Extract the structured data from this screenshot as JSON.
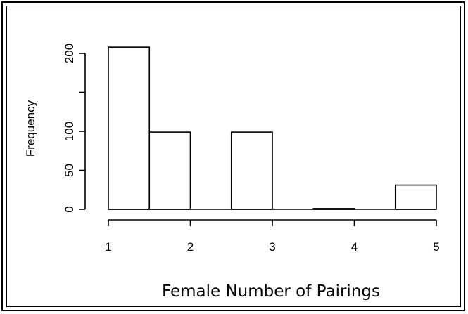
{
  "chart_data": {
    "type": "bar",
    "subtype": "histogram",
    "bins": [
      {
        "x0": 1.0,
        "x1": 1.5,
        "value": 208
      },
      {
        "x0": 1.5,
        "x1": 2.0,
        "value": 99
      },
      {
        "x0": 2.0,
        "x1": 2.5,
        "value": 0
      },
      {
        "x0": 2.5,
        "x1": 3.0,
        "value": 99
      },
      {
        "x0": 3.0,
        "x1": 3.5,
        "value": 0
      },
      {
        "x0": 3.5,
        "x1": 4.0,
        "value": 1
      },
      {
        "x0": 4.0,
        "x1": 4.5,
        "value": 0
      },
      {
        "x0": 4.5,
        "x1": 5.0,
        "value": 31
      }
    ],
    "xlabel": "Female Number of Pairings",
    "ylabel": "Frequency",
    "xticks": [
      1,
      2,
      3,
      4,
      5
    ],
    "xtick_labels": [
      "1",
      "2",
      "3",
      "4",
      "5"
    ],
    "yticks": [
      0,
      50,
      100,
      150,
      200
    ],
    "ytick_labels": [
      "0",
      "50",
      "100",
      "",
      "200"
    ],
    "xlim": [
      1,
      5
    ],
    "ylim": [
      0,
      208
    ],
    "grid": false,
    "bar_fill": "#ffffff",
    "bar_stroke": "#000000"
  }
}
